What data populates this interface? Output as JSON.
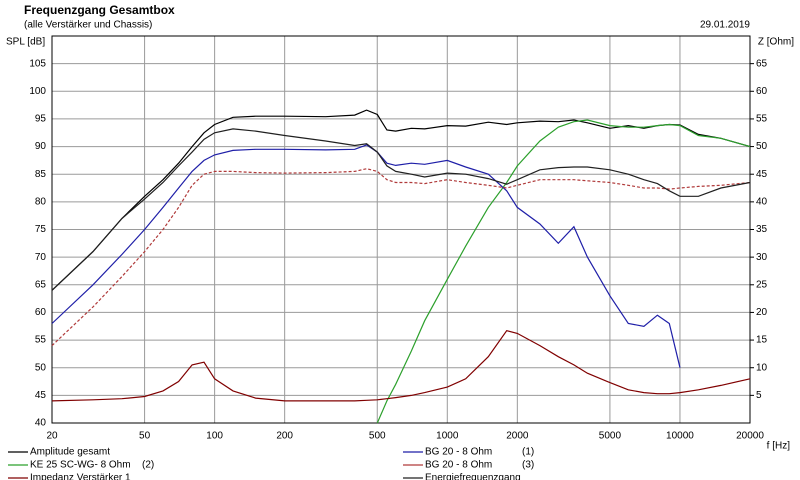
{
  "chart_data": {
    "type": "line",
    "title": "Frequenzgang Gesamtbox",
    "subtitle": "(alle Verstärker und Chassis)",
    "date": "29.01.2019",
    "y_label": "SPL [dB]",
    "y2_label": "Z [Ohm]",
    "x_label": "f [Hz]",
    "log_x": true,
    "grid": true,
    "xlim": [
      20,
      20000
    ],
    "xticks": [
      20,
      50,
      100,
      200,
      500,
      1000,
      2000,
      5000,
      10000,
      20000
    ],
    "ylim": [
      40,
      110
    ],
    "yticks": [
      40,
      45,
      50,
      55,
      60,
      65,
      70,
      75,
      80,
      85,
      90,
      95,
      100,
      105
    ],
    "y2lim": [
      0,
      70
    ],
    "y2ticks": [
      5,
      10,
      15,
      20,
      25,
      30,
      35,
      40,
      45,
      50,
      55,
      60,
      65
    ],
    "x": [
      20,
      30,
      40,
      50,
      60,
      70,
      80,
      90,
      100,
      120,
      150,
      200,
      300,
      400,
      450,
      500,
      550,
      600,
      700,
      800,
      1000,
      1200,
      1500,
      1800,
      2000,
      2500,
      3000,
      3500,
      4000,
      5000,
      6000,
      7000,
      8000,
      9000,
      10000,
      12000,
      15000,
      20000
    ],
    "series": [
      {
        "name": "Amplitude gesamt",
        "color": "#000000",
        "values": [
          64,
          71,
          77,
          81,
          84,
          87,
          90,
          92.5,
          94,
          95.3,
          95.5,
          95.5,
          95.4,
          95.7,
          96.6,
          95.8,
          93,
          92.8,
          93.3,
          93.2,
          93.8,
          93.7,
          94.4,
          94,
          94.3,
          94.6,
          94.5,
          94.8,
          94.3,
          93.3,
          93.8,
          93.3,
          93.8,
          94,
          93.9,
          92.2,
          91.5,
          90
        ]
      },
      {
        "name": "KE 25 SC-WG- 8 Ohm",
        "tag": "(2)",
        "color": "#2ca02c",
        "values": [
          null,
          null,
          null,
          null,
          null,
          null,
          null,
          null,
          null,
          null,
          null,
          null,
          null,
          null,
          null,
          40,
          44,
          47,
          53,
          58.5,
          66,
          72,
          79,
          83.5,
          86.5,
          91,
          93.5,
          94.5,
          94.8,
          93.8,
          93.5,
          93.5,
          93.8,
          94,
          93.8,
          92,
          91.5,
          90
        ]
      },
      {
        "name": "Impedanz Verstärker 1",
        "color": "#800000",
        "axis": "y2",
        "values": [
          4,
          4.2,
          4.4,
          4.8,
          5.8,
          7.5,
          10.5,
          11,
          8,
          5.8,
          4.5,
          4,
          4,
          4,
          4.1,
          4.2,
          4.4,
          4.6,
          5,
          5.5,
          6.5,
          8,
          12,
          16.7,
          16.2,
          14,
          12,
          10.5,
          9,
          7.3,
          6,
          5.5,
          5.3,
          5.3,
          5.5,
          6,
          6.8,
          8
        ]
      },
      {
        "name": "BG 20 - 8 Ohm",
        "tag": "(1)",
        "color": "#1f1fa8",
        "values": [
          58,
          65,
          70.5,
          75,
          79,
          82.5,
          85.5,
          87.5,
          88.5,
          89.3,
          89.5,
          89.5,
          89.4,
          89.5,
          90.3,
          89,
          87,
          86.6,
          87,
          86.8,
          87.5,
          86.3,
          85,
          82,
          79,
          76,
          72.5,
          75.5,
          70,
          63,
          58,
          57.5,
          59.5,
          58,
          50,
          null,
          null,
          null
        ]
      },
      {
        "name": "BG 20 - 8 Ohm",
        "tag": "(3)",
        "color": "#b03a3a",
        "dashed": true,
        "values": [
          54,
          61,
          66.5,
          71,
          75,
          79,
          83,
          85,
          85.5,
          85.5,
          85.3,
          85.2,
          85.3,
          85.5,
          86,
          85.5,
          84,
          83.5,
          83.5,
          83.3,
          84,
          83.5,
          83,
          82.5,
          83,
          84,
          84,
          84,
          83.8,
          83.5,
          83,
          82.5,
          82.5,
          82.3,
          82.5,
          82.8,
          83,
          83.5
        ]
      },
      {
        "name": "Energiefrequenzgang",
        "color": "#202020",
        "values": [
          64,
          71,
          77,
          80.5,
          83.5,
          86.5,
          89,
          91.3,
          92.5,
          93.2,
          92.8,
          92,
          91,
          90.2,
          90.5,
          89,
          86.5,
          85.5,
          85,
          84.5,
          85.2,
          85,
          84.2,
          83.2,
          84,
          85.8,
          86.2,
          86.3,
          86.3,
          85.8,
          85,
          84,
          83.3,
          82,
          81,
          81,
          82.5,
          83.5
        ]
      }
    ]
  }
}
